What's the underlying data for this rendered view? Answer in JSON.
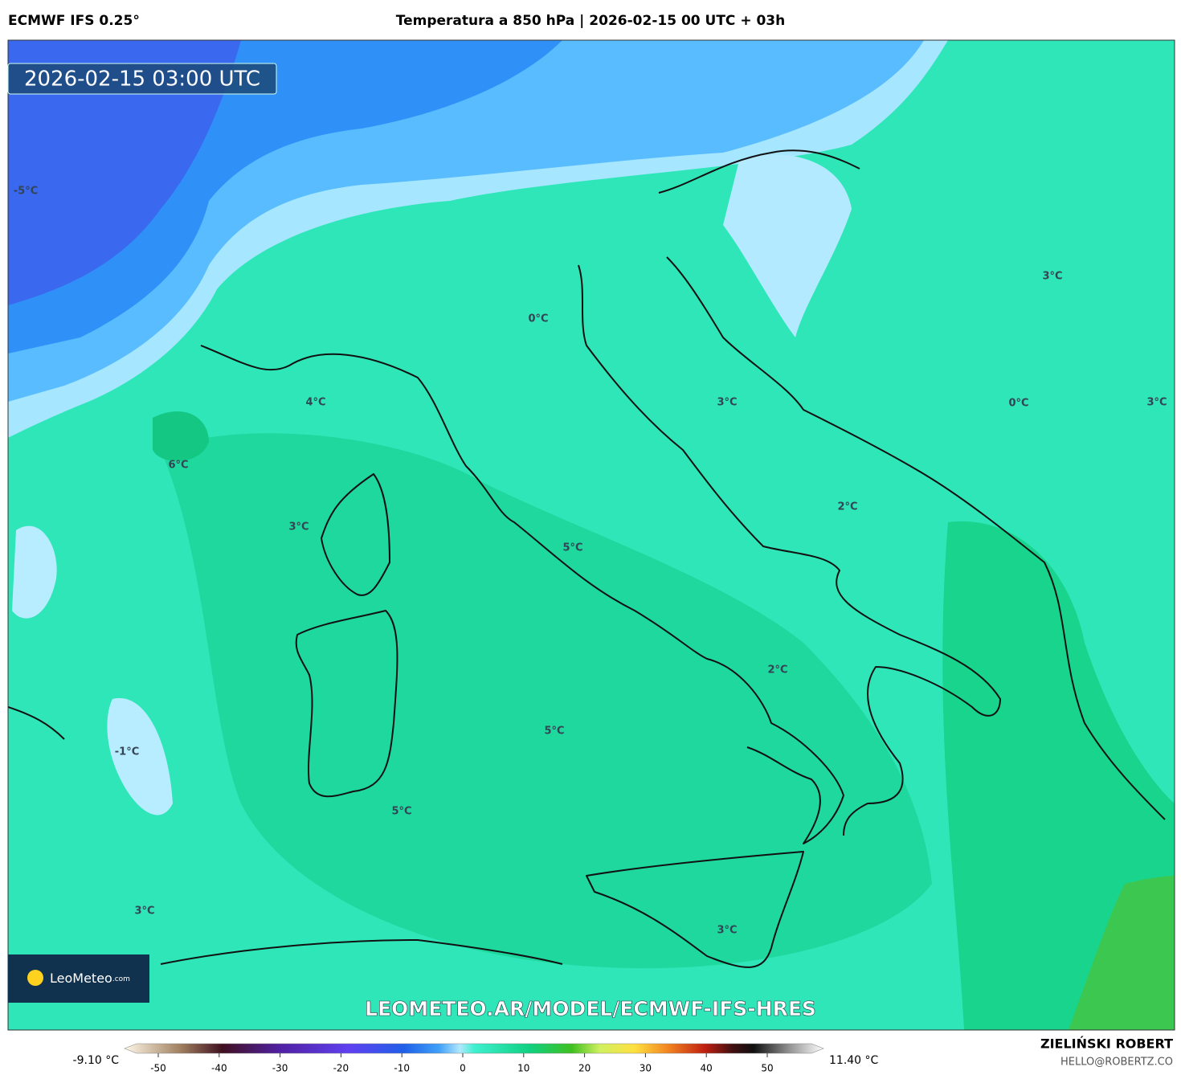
{
  "header": {
    "model": "ECMWF IFS 0.25°",
    "title": "Temperatura a 850 hPa | 2026-02-15 00 UTC + 03h"
  },
  "timestamp": "2026-02-15 03:00 UTC",
  "logo": {
    "brand": "LeoMeteo",
    "suffix": ".com"
  },
  "watermark": "LEOMETEO.AR/MODEL/ECMWF-IFS-HRES",
  "contour_labels": [
    "-5°C",
    "0°C",
    "3°C",
    "4°C",
    "6°C",
    "3°C",
    "3°C",
    "0°C",
    "3°C",
    "2°C",
    "5°C",
    "2°C",
    "-1°C",
    "5°C",
    "5°C",
    "3°C",
    "3°C"
  ],
  "colorbar": {
    "min_label": "-9.10 °C",
    "max_label": "11.40 °C",
    "ticks": [
      -50,
      -40,
      -30,
      -20,
      -10,
      0,
      10,
      20,
      30,
      40,
      50
    ]
  },
  "credits": {
    "author": "ZIELIŃSKI ROBERT",
    "email": "HELLO@ROBERTZ.CO"
  }
}
